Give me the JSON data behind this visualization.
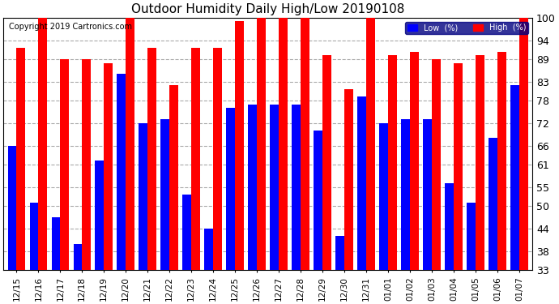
{
  "title": "Outdoor Humidity Daily High/Low 20190108",
  "copyright": "Copyright 2019 Cartronics.com",
  "categories": [
    "12/15",
    "12/16",
    "12/17",
    "12/18",
    "12/19",
    "12/20",
    "12/21",
    "12/22",
    "12/23",
    "12/24",
    "12/25",
    "12/26",
    "12/27",
    "12/28",
    "12/29",
    "12/30",
    "12/31",
    "01/01",
    "01/02",
    "01/03",
    "01/04",
    "01/05",
    "01/06",
    "01/07"
  ],
  "high_values": [
    92,
    100,
    89,
    89,
    88,
    100,
    92,
    82,
    92,
    92,
    99,
    100,
    100,
    100,
    90,
    81,
    100,
    90,
    91,
    89,
    88,
    90,
    91,
    100
  ],
  "low_values": [
    66,
    51,
    47,
    40,
    62,
    85,
    72,
    73,
    53,
    44,
    76,
    77,
    77,
    77,
    70,
    42,
    79,
    72,
    73,
    73,
    56,
    51,
    68,
    82
  ],
  "high_color": "#FF0000",
  "low_color": "#0000FF",
  "background_color": "#FFFFFF",
  "grid_color": "#AAAAAA",
  "yticks": [
    33,
    38,
    44,
    50,
    55,
    61,
    66,
    72,
    78,
    83,
    89,
    94,
    100
  ],
  "ylim": [
    33,
    100
  ],
  "ymin": 33,
  "bar_width": 0.4,
  "legend_low_label": "Low  (%)",
  "legend_high_label": "High  (%)"
}
